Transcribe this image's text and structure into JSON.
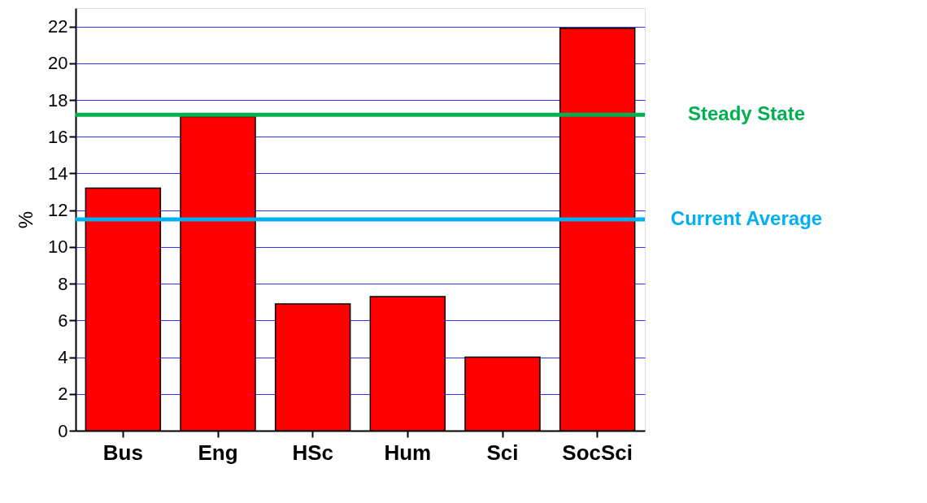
{
  "chart_data": {
    "type": "bar",
    "ylabel": "%",
    "categories": [
      "Bus",
      "Eng",
      "HSc",
      "Hum",
      "Sci",
      "SocSci"
    ],
    "series": [
      {
        "color": "#ff0000",
        "values": [
          13.2,
          17.1,
          6.9,
          7.3,
          4.0,
          21.9
        ]
      }
    ],
    "ylim": [
      0,
      23
    ],
    "yticks": [
      0,
      2,
      4,
      6,
      8,
      10,
      12,
      14,
      16,
      18,
      20,
      22
    ],
    "grid": "y",
    "ref_lines": [
      {
        "axis": "y",
        "value": 17.2,
        "label": "Steady State",
        "color": "#00b050"
      },
      {
        "axis": "y",
        "value": 11.5,
        "label": "Current Average",
        "color": "#00b0f0"
      }
    ]
  }
}
